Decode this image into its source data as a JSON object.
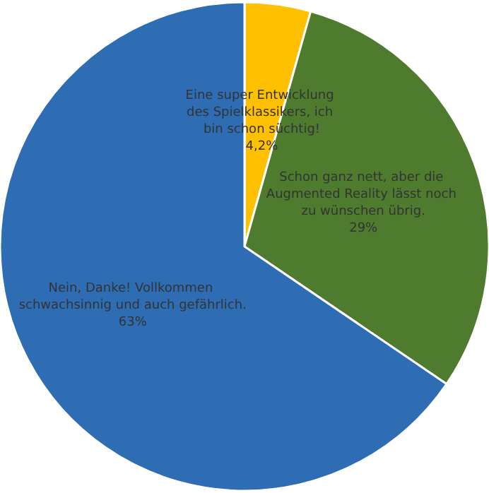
{
  "chart_data": {
    "type": "pie",
    "categories": [
      "Eine super Entwicklung des Spielklassikers, ich bin schon süchtig!",
      "Schon ganz nett, aber die Augmented Reality lässt noch zu wünschen übrig.",
      "Nein, Danke! Vollkommen schwachsinnig und auch gefährlich."
    ],
    "values": [
      4.2,
      29,
      63
    ],
    "value_labels": [
      "4,2%",
      "29%",
      "63%"
    ],
    "colors": [
      "#ffc000",
      "#4f7b2f",
      "#2e6db4"
    ],
    "legend": false
  }
}
